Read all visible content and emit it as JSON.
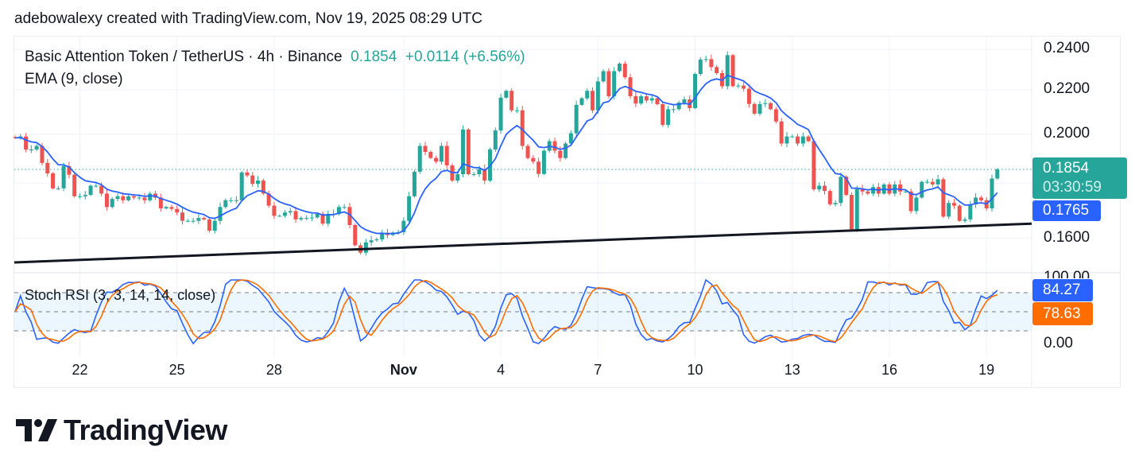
{
  "header": {
    "attribution": "adebowalexy created with TradingView.com, Nov 19, 2025 08:29 UTC"
  },
  "legend": {
    "symbol": "Basic Attention Token / TetherUS · 4h · Binance",
    "price": "0.1854",
    "change": "+0.0114 (+6.56%)",
    "ema_label": "EMA (9, close)",
    "stoch_label": "Stoch RSI (3, 3, 14, 14, close)"
  },
  "chart_data": {
    "type": "candlestick",
    "interval": "4h",
    "y_scale": "log",
    "grid": true,
    "y_ticks": [
      "0.2400",
      "0.2200",
      "0.2000",
      "0.1600"
    ],
    "x_ticks": [
      "22",
      "25",
      "28",
      "Nov",
      "4",
      "7",
      "10",
      "13",
      "16",
      "19"
    ],
    "closes": [
      0.1984,
      0.199,
      0.1935,
      0.1935,
      0.195,
      0.188,
      0.1838,
      0.178,
      0.178,
      0.1867,
      0.1833,
      0.175,
      0.175,
      0.1755,
      0.179,
      0.179,
      0.176,
      0.171,
      0.174,
      0.175,
      0.1735,
      0.175,
      0.1745,
      0.1745,
      0.1735,
      0.176,
      0.1745,
      0.1705,
      0.171,
      0.1703,
      0.169,
      0.166,
      0.166,
      0.166,
      0.167,
      0.1665,
      0.1625,
      0.166,
      0.171,
      0.1735,
      0.1735,
      0.1735,
      0.1842,
      0.183,
      0.1797,
      0.181,
      0.176,
      0.1715,
      0.1678,
      0.1678,
      0.169,
      0.1695,
      0.1665,
      0.167,
      0.167,
      0.1672,
      0.1685,
      0.165,
      0.1685,
      0.1685,
      0.171,
      0.171,
      0.1645,
      0.1575,
      0.155,
      0.1585,
      0.1592,
      0.1595,
      0.1618,
      0.161,
      0.1618,
      0.162,
      0.166,
      0.175,
      0.1845,
      0.195,
      0.1925,
      0.19,
      0.1885,
      0.195,
      0.187,
      0.181,
      0.1835,
      0.202,
      0.1835,
      0.1835,
      0.1855,
      0.181,
      0.1935,
      0.2016,
      0.2163,
      0.2195,
      0.2105,
      0.2105,
      0.195,
      0.19,
      0.1885,
      0.1836,
      0.193,
      0.197,
      0.193,
      0.19,
      0.196,
      0.2004,
      0.213,
      0.216,
      0.2195,
      0.2105,
      0.224,
      0.229,
      0.217,
      0.229,
      0.2327,
      0.226,
      0.217,
      0.2136,
      0.217,
      0.215,
      0.216,
      0.2133,
      0.204,
      0.211,
      0.211,
      0.214,
      0.2155,
      0.2115,
      0.2276,
      0.2348,
      0.235,
      0.231,
      0.228,
      0.2217,
      0.237,
      0.2217,
      0.222,
      0.2205,
      0.2134,
      0.209,
      0.2134,
      0.2138,
      0.211,
      0.2055,
      0.196,
      0.199,
      0.199,
      0.196,
      0.199,
      0.197,
      0.1776,
      0.179,
      0.177,
      0.172,
      0.1725,
      0.1825,
      0.1755,
      0.163,
      0.1777,
      0.1768,
      0.176,
      0.1785,
      0.176,
      0.1795,
      0.176,
      0.1795,
      0.1768,
      0.1768,
      0.1695,
      0.1745,
      0.1805,
      0.1805,
      0.1795,
      0.1815,
      0.1675,
      0.1725,
      0.1715,
      0.166,
      0.1665,
      0.172,
      0.1745,
      0.1735,
      0.1705,
      0.1818,
      0.1854
    ],
    "last_price": "0.1854",
    "countdown": "03:30:59",
    "ema": {
      "period": 9,
      "value": "0.1765"
    },
    "trendline": {
      "start_price": 0.1518,
      "end_price": 0.165
    },
    "stoch_rsi": {
      "y_ticks": [
        "100.00",
        "0.00"
      ],
      "bands": [
        20,
        50,
        80
      ],
      "k_value": "84.27",
      "d_value": "78.63"
    }
  },
  "colors": {
    "up": "#26a69a",
    "down": "#ef5350",
    "ema": "#2962ff",
    "stoch_k": "#2962ff",
    "stoch_d": "#ff6d00",
    "trendline": "#131722"
  },
  "logo": {
    "text": "TradingView"
  }
}
